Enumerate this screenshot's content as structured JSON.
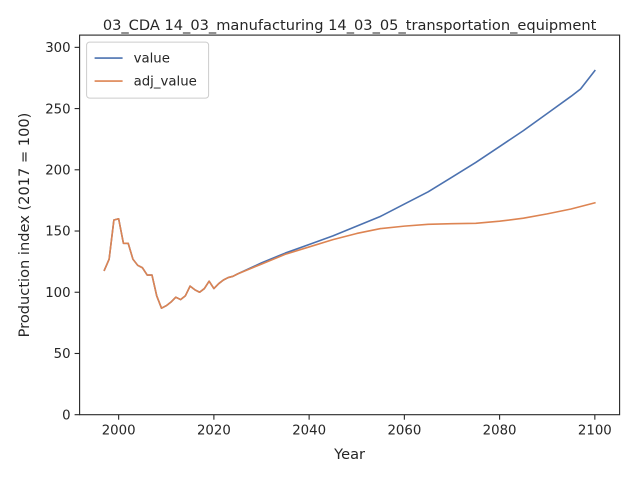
{
  "chart_data": {
    "type": "line",
    "title": "03_CDA 14_03_manufacturing 14_03_05_transportation_equipment",
    "xlabel": "Year",
    "ylabel": "Production index (2017 = 100)",
    "xlim": [
      1991.8,
      2105.2
    ],
    "ylim": [
      0,
      310
    ],
    "xticks": [
      2000,
      2020,
      2040,
      2060,
      2080,
      2100
    ],
    "yticks": [
      0,
      50,
      100,
      150,
      200,
      250,
      300
    ],
    "grid": false,
    "legend_position": "top-left",
    "series": [
      {
        "name": "value",
        "color": "#4c72b0",
        "points": [
          [
            1997,
            118
          ],
          [
            1998,
            127
          ],
          [
            1999,
            159
          ],
          [
            2000,
            160
          ],
          [
            2001,
            140
          ],
          [
            2002,
            140
          ],
          [
            2003,
            127
          ],
          [
            2004,
            122
          ],
          [
            2005,
            120
          ],
          [
            2006,
            114
          ],
          [
            2007,
            114
          ],
          [
            2008,
            97
          ],
          [
            2009,
            87
          ],
          [
            2010,
            89
          ],
          [
            2011,
            92
          ],
          [
            2012,
            96
          ],
          [
            2013,
            94
          ],
          [
            2014,
            97
          ],
          [
            2015,
            105
          ],
          [
            2016,
            102
          ],
          [
            2017,
            100
          ],
          [
            2018,
            103
          ],
          [
            2019,
            109
          ],
          [
            2020,
            103
          ],
          [
            2021,
            107
          ],
          [
            2022,
            110
          ],
          [
            2023,
            112
          ],
          [
            2024,
            113
          ],
          [
            2025,
            115
          ],
          [
            2030,
            124
          ],
          [
            2035,
            132
          ],
          [
            2040,
            139
          ],
          [
            2045,
            146
          ],
          [
            2050,
            154
          ],
          [
            2055,
            162
          ],
          [
            2060,
            172
          ],
          [
            2065,
            182
          ],
          [
            2070,
            194
          ],
          [
            2075,
            206
          ],
          [
            2080,
            219
          ],
          [
            2085,
            232
          ],
          [
            2090,
            246
          ],
          [
            2095,
            260
          ],
          [
            2097,
            266
          ],
          [
            2100,
            281
          ]
        ]
      },
      {
        "name": "adj_value",
        "color": "#dd8452",
        "points": [
          [
            1997,
            118
          ],
          [
            1998,
            127
          ],
          [
            1999,
            159
          ],
          [
            2000,
            160
          ],
          [
            2001,
            140
          ],
          [
            2002,
            140
          ],
          [
            2003,
            127
          ],
          [
            2004,
            122
          ],
          [
            2005,
            120
          ],
          [
            2006,
            114
          ],
          [
            2007,
            114
          ],
          [
            2008,
            97
          ],
          [
            2009,
            87
          ],
          [
            2010,
            89
          ],
          [
            2011,
            92
          ],
          [
            2012,
            96
          ],
          [
            2013,
            94
          ],
          [
            2014,
            97
          ],
          [
            2015,
            105
          ],
          [
            2016,
            102
          ],
          [
            2017,
            100
          ],
          [
            2018,
            103
          ],
          [
            2019,
            109
          ],
          [
            2020,
            103
          ],
          [
            2021,
            107
          ],
          [
            2022,
            110
          ],
          [
            2023,
            112
          ],
          [
            2024,
            113
          ],
          [
            2025,
            115
          ],
          [
            2030,
            123
          ],
          [
            2035,
            131
          ],
          [
            2040,
            137
          ],
          [
            2045,
            143
          ],
          [
            2050,
            148
          ],
          [
            2055,
            152
          ],
          [
            2060,
            154
          ],
          [
            2065,
            155.5
          ],
          [
            2070,
            156
          ],
          [
            2075,
            156.3
          ],
          [
            2080,
            158
          ],
          [
            2085,
            160.5
          ],
          [
            2090,
            164
          ],
          [
            2095,
            168
          ],
          [
            2100,
            173
          ]
        ]
      }
    ]
  }
}
